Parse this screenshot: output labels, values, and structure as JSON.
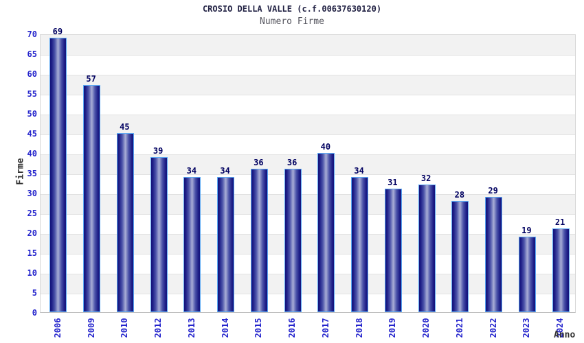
{
  "chart_data": {
    "type": "bar",
    "title": "CROSIO DELLA VALLE (c.f.00637630120)",
    "subtitle": "Numero Firme",
    "xlabel": "Anno",
    "ylabel": "Firme",
    "categories": [
      "2006",
      "2009",
      "2010",
      "2012",
      "2013",
      "2014",
      "2015",
      "2016",
      "2017",
      "2018",
      "2019",
      "2020",
      "2021",
      "2022",
      "2023",
      "2024"
    ],
    "values": [
      69,
      57,
      45,
      39,
      34,
      34,
      36,
      36,
      40,
      34,
      31,
      32,
      28,
      29,
      19,
      21
    ],
    "ylim": [
      0,
      70
    ],
    "ytick_step": 5,
    "grid": true,
    "bands_alternating": true,
    "legend_position": "none",
    "colors": {
      "bar_dark": "#13137a",
      "bar_light": "#a9aed6",
      "bar_border": "#5caaf5",
      "tick_text": "#2323cc",
      "value_text": "#000060",
      "band": "#f2f2f2",
      "gridline": "#e2e2e2",
      "axis_label": "#333333",
      "title": "#222244",
      "subtitle": "#55555e"
    }
  }
}
